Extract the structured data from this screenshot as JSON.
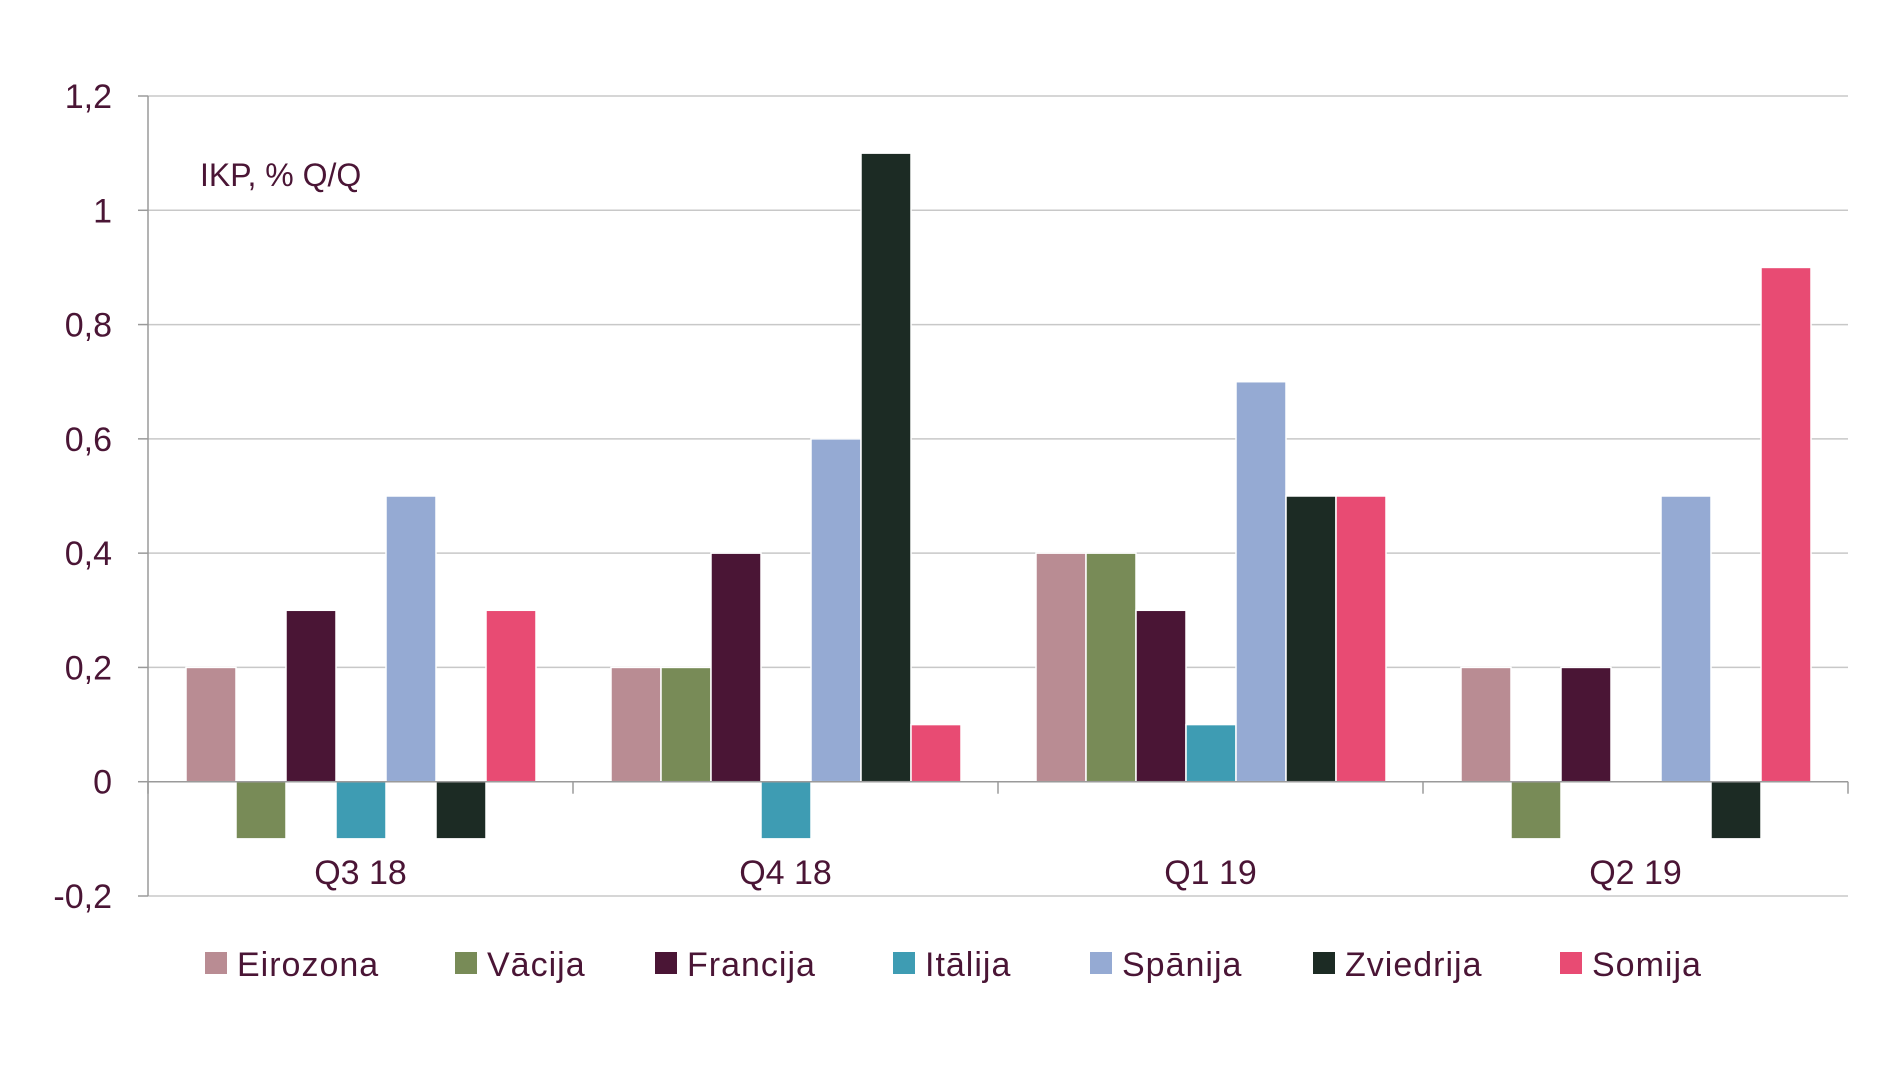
{
  "chart_data": {
    "type": "bar",
    "annotation": "IKP, % Q/Q",
    "categories": [
      "Q3 18",
      "Q4 18",
      "Q1 19",
      "Q2 19"
    ],
    "ylim": [
      -0.2,
      1.2
    ],
    "yticks": [
      -0.2,
      0,
      0.2,
      0.4,
      0.6,
      0.8,
      1,
      1.2
    ],
    "ytick_labels": [
      "-0,2",
      "0",
      "0,2",
      "0,4",
      "0,6",
      "0,8",
      "1",
      "1,2"
    ],
    "grid": true,
    "legend_position": "bottom",
    "series": [
      {
        "name": "Eirozona",
        "color": "#b98c93",
        "values": [
          0.2,
          0.2,
          0.4,
          0.2
        ]
      },
      {
        "name": "Vācija",
        "color": "#788b57",
        "values": [
          -0.1,
          0.2,
          0.4,
          -0.1
        ]
      },
      {
        "name": "Francija",
        "color": "#4a1535",
        "values": [
          0.3,
          0.4,
          0.3,
          0.2
        ]
      },
      {
        "name": "Itālija",
        "color": "#3e9cb3",
        "values": [
          -0.1,
          -0.1,
          0.1,
          0.0
        ]
      },
      {
        "name": "Spānija",
        "color": "#95aad3",
        "values": [
          0.5,
          0.6,
          0.7,
          0.5
        ]
      },
      {
        "name": "Zviedrija",
        "color": "#1c2b24",
        "values": [
          -0.1,
          1.1,
          0.5,
          -0.1
        ]
      },
      {
        "name": "Somija",
        "color": "#e84b73",
        "values": [
          0.3,
          0.1,
          0.5,
          0.9
        ]
      }
    ]
  }
}
